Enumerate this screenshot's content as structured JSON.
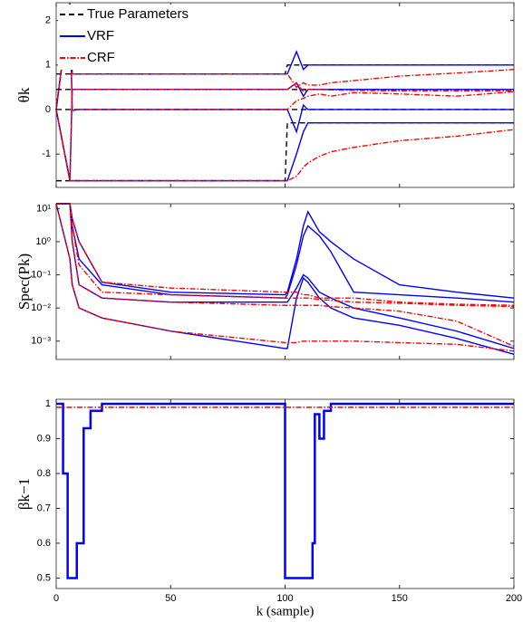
{
  "chart_data": [
    {
      "type": "line",
      "ylabel": "θk",
      "legend": "upper left",
      "xlim": [
        0,
        200
      ],
      "ylim": [
        -1.75,
        2.4
      ],
      "yticks": [
        -1,
        0,
        1,
        2
      ],
      "x": [
        0,
        6,
        7,
        10,
        20,
        50,
        100,
        101,
        105,
        108,
        110,
        115,
        120,
        130,
        150,
        175,
        200
      ],
      "series": [
        {
          "name": "True Parameters",
          "color": "#000000",
          "dash": "dashed",
          "lines": [
            [
              0.8,
              0.8,
              0.8,
              0.8,
              0.8,
              0.8,
              0.8,
              1,
              1,
              1,
              1,
              1,
              1,
              1,
              1,
              1,
              1
            ],
            [
              0.45,
              0.45,
              0.45,
              0.45,
              0.45,
              0.45,
              0.45,
              0.45,
              0.45,
              0.45,
              0.45,
              0.45,
              0.45,
              0.45,
              0.45,
              0.45,
              0.45
            ],
            [
              0,
              0,
              0,
              0,
              0,
              0,
              0,
              0,
              0,
              0,
              0,
              0,
              0,
              0,
              0,
              0,
              0
            ],
            [
              -1.6,
              -1.6,
              -1.6,
              -1.6,
              -1.6,
              -1.6,
              -1.6,
              -0.3,
              -0.3,
              -0.3,
              -0.3,
              -0.3,
              -0.3,
              -0.3,
              -0.3,
              -0.3,
              -0.3
            ]
          ]
        },
        {
          "name": "VRF",
          "color": "#0000ff",
          "dash": "solid",
          "lines": [
            [
              0,
              2.4,
              0.8,
              0.8,
              0.8,
              0.8,
              0.8,
              0.8,
              1.3,
              0.9,
              1,
              1,
              1,
              1,
              1,
              1,
              1
            ],
            [
              0,
              -1.6,
              0.45,
              0.45,
              0.45,
              0.45,
              0.45,
              0.45,
              0.6,
              0.3,
              0.45,
              0.45,
              0.45,
              0.45,
              0.45,
              0.45,
              0.45
            ],
            [
              0,
              2.4,
              -0.02,
              0,
              0,
              0,
              0,
              0,
              -0.5,
              0.1,
              0,
              0,
              0,
              0,
              0,
              0,
              0
            ],
            [
              0,
              -1.6,
              -1.6,
              -1.6,
              -1.6,
              -1.6,
              -1.6,
              -1.6,
              -1.0,
              -0.5,
              -0.3,
              -0.3,
              -0.3,
              -0.3,
              -0.3,
              -0.3,
              -0.3
            ]
          ]
        },
        {
          "name": "CRF",
          "color": "#ff0000",
          "dash": "dashdot",
          "lines": [
            [
              0,
              2.4,
              0.8,
              0.8,
              0.8,
              0.8,
              0.8,
              0.8,
              0.5,
              0.6,
              0.55,
              0.55,
              0.6,
              0.65,
              0.75,
              0.82,
              0.9
            ],
            [
              0,
              -1.6,
              0.45,
              0.45,
              0.45,
              0.45,
              0.45,
              0.45,
              0.6,
              0.4,
              0.45,
              0.45,
              0.44,
              0.43,
              0.42,
              0.42,
              0.42
            ],
            [
              0,
              2.4,
              -0.02,
              0,
              0,
              0,
              0,
              0,
              0.2,
              0.25,
              0.3,
              0.35,
              0.3,
              0.38,
              0.35,
              0.3,
              0.4
            ],
            [
              0,
              -1.6,
              -1.6,
              -1.6,
              -1.6,
              -1.6,
              -1.6,
              -1.6,
              -1.5,
              -1.3,
              -1.2,
              -1.05,
              -0.95,
              -0.85,
              -0.7,
              -0.6,
              -0.45
            ]
          ]
        }
      ]
    },
    {
      "type": "line",
      "ylabel": "Spec(Pk)",
      "yscale": "log",
      "xlim": [
        0,
        200
      ],
      "ylim": [
        0.00028,
        14
      ],
      "yticks": [
        {
          "value": 0.001,
          "label": "10⁻³"
        },
        {
          "value": 0.01,
          "label": "10⁻²"
        },
        {
          "value": 0.1,
          "label": "10⁻¹"
        },
        {
          "value": 1,
          "label": "10⁰"
        },
        {
          "value": 10,
          "label": "10¹"
        }
      ],
      "x": [
        0,
        6,
        7,
        10,
        20,
        50,
        100,
        101,
        105,
        108,
        110,
        115,
        120,
        130,
        150,
        175,
        200
      ],
      "series": [
        {
          "color": "#0000ff",
          "dash": "solid",
          "lines": [
            [
              14,
              14,
              5,
              1,
              0.06,
              0.03,
              0.025,
              0.03,
              0.3,
              3,
              8,
              2,
              1,
              0.3,
              0.05,
              0.03,
              0.02
            ],
            [
              14,
              14,
              3,
              0.3,
              0.05,
              0.025,
              0.02,
              0.025,
              0.2,
              1.5,
              3,
              1.5,
              0.5,
              0.03,
              0.025,
              0.02,
              0.015
            ],
            [
              14,
              14,
              1,
              0.05,
              0.02,
              0.015,
              0.015,
              0.015,
              0.04,
              0.1,
              0.08,
              0.03,
              0.02,
              0.01,
              0.005,
              0.002,
              0.0006
            ],
            [
              14,
              0.3,
              0.05,
              0.01,
              0.005,
              0.002,
              0.0006,
              0.0006,
              0.02,
              0.08,
              0.06,
              0.02,
              0.01,
              0.005,
              0.003,
              0.0012,
              0.0004
            ]
          ]
        },
        {
          "color": "#ff0000",
          "dash": "dashdot",
          "lines": [
            [
              14,
              14,
              5,
              1,
              0.06,
              0.04,
              0.03,
              0.03,
              0.03,
              0.025,
              0.025,
              0.02,
              0.02,
              0.02,
              0.015,
              0.013,
              0.012
            ],
            [
              14,
              14,
              3,
              0.2,
              0.03,
              0.025,
              0.02,
              0.02,
              0.02,
              0.02,
              0.02,
              0.018,
              0.017,
              0.015,
              0.014,
              0.012,
              0.011
            ],
            [
              14,
              14,
              1,
              0.05,
              0.02,
              0.015,
              0.012,
              0.012,
              0.012,
              0.012,
              0.012,
              0.012,
              0.011,
              0.01,
              0.008,
              0.004,
              0.0007
            ],
            [
              14,
              0.3,
              0.05,
              0.01,
              0.005,
              0.002,
              0.0009,
              0.0009,
              0.0009,
              0.001,
              0.001,
              0.001,
              0.001,
              0.001,
              0.0009,
              0.0008,
              0.0005
            ]
          ]
        }
      ]
    },
    {
      "type": "line",
      "ylabel": "βk−1",
      "xlabel": "k (sample)",
      "step": true,
      "xlim": [
        0,
        200
      ],
      "ylim": [
        0.47,
        1.013
      ],
      "yticks": [
        0.5,
        0.6,
        0.7,
        0.8,
        0.9,
        1
      ],
      "xticks": [
        0,
        50,
        100,
        150,
        200
      ],
      "x": [
        0,
        3,
        5,
        7,
        9,
        12,
        15,
        20,
        99,
        100,
        101,
        110,
        112,
        113,
        115,
        117,
        120,
        200
      ],
      "series": [
        {
          "color": "#0000ff",
          "dash": "solid",
          "width": 2.5,
          "lines": [
            [
              1,
              0.8,
              0.5,
              0.5,
              0.6,
              0.93,
              0.98,
              1,
              1,
              0.5,
              0.5,
              0.5,
              0.6,
              0.97,
              0.9,
              0.98,
              1,
              1
            ]
          ]
        },
        {
          "color": "#ff0000",
          "dash": "dashdot",
          "width": 1.5,
          "lines": [
            [
              0.99,
              0.99,
              0.99,
              0.99,
              0.99,
              0.99,
              0.99,
              0.99,
              0.99,
              0.99,
              0.99,
              0.99,
              0.99,
              0.99,
              0.99,
              0.99,
              0.99,
              0.99
            ]
          ]
        }
      ]
    }
  ]
}
